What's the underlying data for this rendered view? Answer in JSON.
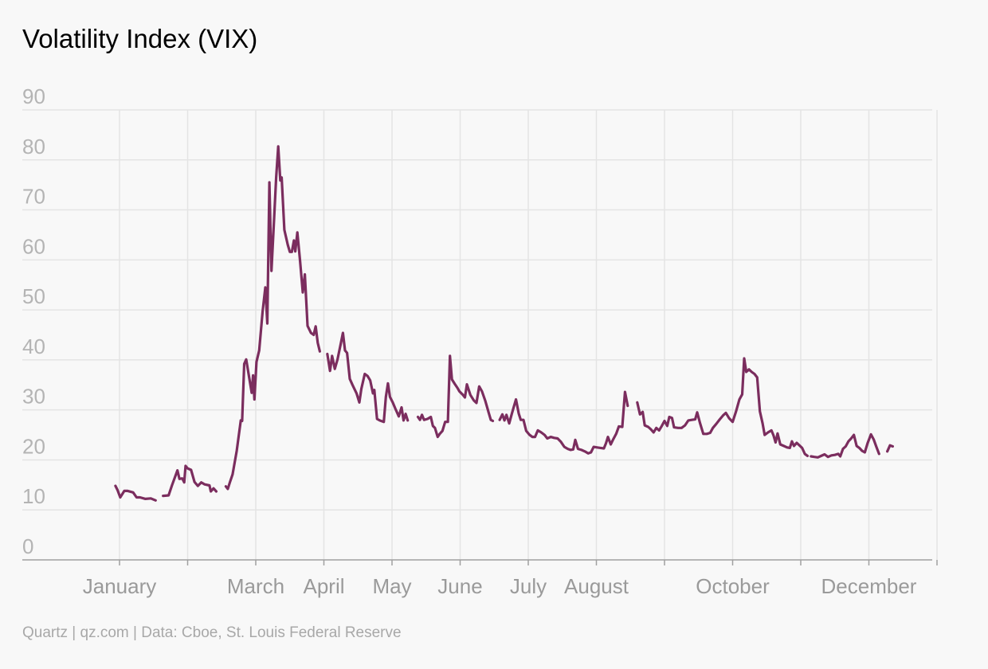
{
  "title": "Volatility Index (VIX)",
  "source": "Quartz | qz.com | Data: Cboe, St. Louis Federal Reserve",
  "colors": {
    "line": "#7b2d5e",
    "grid": "#e4e4e4",
    "tick_text": "#b4b4b4",
    "title": "#000000",
    "background": "#f8f8f8"
  },
  "chart_data": {
    "type": "line",
    "title": "Volatility Index (VIX)",
    "xlabel": "",
    "ylabel": "",
    "ylim": [
      0,
      90
    ],
    "yticks": [
      0,
      10,
      20,
      30,
      40,
      50,
      60,
      70,
      80,
      90
    ],
    "xlim": [
      -0.3,
      11.8
    ],
    "month_ticks": [
      0,
      1,
      2,
      3,
      4,
      5,
      6,
      7,
      8,
      9,
      10,
      11,
      12
    ],
    "xtick_labels": [
      {
        "label": "January",
        "x": 0
      },
      {
        "label": "March",
        "x": 2
      },
      {
        "label": "April",
        "x": 3
      },
      {
        "label": "May",
        "x": 4
      },
      {
        "label": "June",
        "x": 5
      },
      {
        "label": "July",
        "x": 6
      },
      {
        "label": "August",
        "x": 7
      },
      {
        "label": "October",
        "x": 9
      },
      {
        "label": "December",
        "x": 11
      }
    ],
    "grid": true,
    "legend": "none",
    "series": [
      {
        "segments": [
          [
            [
              -0.06,
              14.8
            ],
            [
              -0.03,
              14.0
            ],
            [
              0.01,
              12.5
            ],
            [
              0.07,
              13.8
            ],
            [
              0.12,
              13.8
            ],
            [
              0.2,
              13.5
            ],
            [
              0.25,
              12.5
            ],
            [
              0.3,
              12.5
            ],
            [
              0.38,
              12.2
            ],
            [
              0.46,
              12.3
            ],
            [
              0.53,
              11.9
            ]
          ],
          [
            [
              0.64,
              12.8
            ],
            [
              0.72,
              12.9
            ],
            [
              0.77,
              14.9
            ],
            [
              0.85,
              17.9
            ],
            [
              0.88,
              16.2
            ],
            [
              0.92,
              16.3
            ],
            [
              0.95,
              15.5
            ],
            [
              0.97,
              18.8
            ],
            [
              1.0,
              18.3
            ],
            [
              1.05,
              18.0
            ],
            [
              1.1,
              15.6
            ],
            [
              1.15,
              14.8
            ],
            [
              1.2,
              15.5
            ],
            [
              1.25,
              15.1
            ],
            [
              1.32,
              14.9
            ],
            [
              1.34,
              13.7
            ],
            [
              1.38,
              14.3
            ],
            [
              1.42,
              13.7
            ]
          ],
          [
            [
              1.56,
              14.7
            ],
            [
              1.59,
              14.2
            ],
            [
              1.62,
              15.5
            ],
            [
              1.66,
              17.1
            ],
            [
              1.72,
              21.8
            ],
            [
              1.78,
              27.9
            ],
            [
              1.8,
              27.8
            ],
            [
              1.83,
              39.2
            ],
            [
              1.86,
              40.1
            ],
            [
              1.9,
              36.8
            ],
            [
              1.94,
              33.4
            ],
            [
              1.96,
              36.9
            ],
            [
              1.98,
              32.1
            ],
            [
              2.01,
              39.6
            ],
            [
              2.05,
              41.9
            ],
            [
              2.1,
              49.7
            ],
            [
              2.14,
              54.5
            ],
            [
              2.17,
              47.3
            ],
            [
              2.2,
              75.5
            ],
            [
              2.23,
              57.8
            ],
            [
              2.27,
              68.5
            ],
            [
              2.3,
              76.5
            ],
            [
              2.33,
              82.7
            ],
            [
              2.36,
              75.9
            ],
            [
              2.38,
              76.5
            ],
            [
              2.42,
              66.0
            ],
            [
              2.47,
              63.0
            ],
            [
              2.5,
              61.6
            ],
            [
              2.53,
              61.6
            ],
            [
              2.56,
              63.9
            ],
            [
              2.58,
              61.7
            ],
            [
              2.61,
              65.5
            ],
            [
              2.65,
              59.8
            ],
            [
              2.69,
              53.5
            ],
            [
              2.72,
              57.1
            ],
            [
              2.76,
              46.8
            ],
            [
              2.81,
              45.4
            ],
            [
              2.85,
              45.0
            ],
            [
              2.88,
              46.7
            ],
            [
              2.91,
              43.4
            ],
            [
              2.94,
              41.7
            ]
          ],
          [
            [
              3.05,
              41.2
            ],
            [
              3.09,
              37.8
            ],
            [
              3.12,
              40.8
            ],
            [
              3.16,
              38.2
            ],
            [
              3.2,
              40.1
            ],
            [
              3.25,
              43.4
            ],
            [
              3.28,
              45.4
            ],
            [
              3.31,
              41.9
            ],
            [
              3.34,
              41.4
            ],
            [
              3.38,
              36.2
            ],
            [
              3.42,
              35.0
            ],
            [
              3.48,
              33.3
            ],
            [
              3.52,
              31.5
            ],
            [
              3.55,
              34.2
            ],
            [
              3.6,
              37.2
            ],
            [
              3.64,
              36.8
            ],
            [
              3.68,
              35.9
            ],
            [
              3.72,
              33.3
            ],
            [
              3.74,
              34.0
            ],
            [
              3.78,
              28.2
            ],
            [
              3.82,
              27.9
            ],
            [
              3.88,
              27.6
            ],
            [
              3.91,
              32.6
            ],
            [
              3.94,
              35.3
            ],
            [
              3.97,
              32.6
            ],
            [
              4.01,
              31.5
            ],
            [
              4.05,
              30.2
            ],
            [
              4.1,
              28.7
            ],
            [
              4.14,
              30.5
            ],
            [
              4.17,
              27.9
            ],
            [
              4.2,
              29.2
            ],
            [
              4.23,
              27.9
            ]
          ],
          [
            [
              4.38,
              28.6
            ],
            [
              4.41,
              28.0
            ],
            [
              4.44,
              29.0
            ],
            [
              4.47,
              28.0
            ],
            [
              4.52,
              28.2
            ],
            [
              4.57,
              28.6
            ],
            [
              4.6,
              26.8
            ],
            [
              4.63,
              26.4
            ],
            [
              4.67,
              24.6
            ],
            [
              4.7,
              25.2
            ],
            [
              4.74,
              25.8
            ],
            [
              4.78,
              27.6
            ],
            [
              4.82,
              27.6
            ],
            [
              4.85,
              40.8
            ],
            [
              4.88,
              36.1
            ],
            [
              4.92,
              35.2
            ],
            [
              4.96,
              34.4
            ],
            [
              4.99,
              33.7
            ],
            [
              5.04,
              33.0
            ],
            [
              5.07,
              32.5
            ],
            [
              5.1,
              35.1
            ],
            [
              5.15,
              33.0
            ],
            [
              5.2,
              31.9
            ],
            [
              5.24,
              31.4
            ],
            [
              5.28,
              34.7
            ],
            [
              5.32,
              33.7
            ],
            [
              5.37,
              31.8
            ],
            [
              5.42,
              29.4
            ],
            [
              5.45,
              28.0
            ],
            [
              5.48,
              27.8
            ]
          ],
          [
            [
              5.58,
              28.0
            ],
            [
              5.62,
              29.1
            ],
            [
              5.65,
              27.9
            ],
            [
              5.68,
              29.0
            ],
            [
              5.72,
              27.3
            ],
            [
              5.76,
              29.3
            ],
            [
              5.79,
              30.7
            ],
            [
              5.82,
              32.1
            ],
            [
              5.86,
              29.3
            ],
            [
              5.89,
              28.0
            ],
            [
              5.93,
              28.0
            ],
            [
              5.97,
              25.8
            ],
            [
              6.02,
              25.0
            ],
            [
              6.06,
              24.6
            ],
            [
              6.1,
              24.6
            ],
            [
              6.14,
              25.9
            ],
            [
              6.19,
              25.5
            ],
            [
              6.24,
              25.0
            ],
            [
              6.28,
              24.3
            ],
            [
              6.33,
              24.6
            ],
            [
              6.38,
              24.4
            ],
            [
              6.43,
              24.3
            ],
            [
              6.48,
              23.6
            ],
            [
              6.53,
              22.6
            ],
            [
              6.58,
              22.2
            ],
            [
              6.62,
              22.0
            ],
            [
              6.66,
              22.1
            ],
            [
              6.69,
              24.0
            ],
            [
              6.73,
              22.2
            ],
            [
              6.78,
              22.0
            ],
            [
              6.83,
              21.7
            ],
            [
              6.88,
              21.3
            ],
            [
              6.92,
              21.5
            ],
            [
              6.96,
              22.6
            ],
            [
              7.01,
              22.5
            ],
            [
              7.06,
              22.4
            ],
            [
              7.11,
              22.3
            ],
            [
              7.14,
              23.3
            ],
            [
              7.17,
              24.6
            ],
            [
              7.21,
              23.1
            ],
            [
              7.25,
              24.2
            ],
            [
              7.29,
              25.2
            ],
            [
              7.33,
              26.7
            ],
            [
              7.38,
              26.6
            ],
            [
              7.42,
              33.6
            ],
            [
              7.46,
              30.8
            ]
          ],
          [
            [
              7.6,
              31.5
            ],
            [
              7.64,
              29.1
            ],
            [
              7.68,
              29.6
            ],
            [
              7.71,
              26.9
            ],
            [
              7.76,
              26.6
            ],
            [
              7.8,
              26.1
            ],
            [
              7.84,
              25.5
            ],
            [
              7.88,
              26.4
            ],
            [
              7.92,
              25.9
            ],
            [
              7.96,
              26.8
            ],
            [
              8.0,
              27.8
            ],
            [
              8.04,
              26.8
            ],
            [
              8.07,
              28.6
            ],
            [
              8.11,
              28.4
            ],
            [
              8.14,
              26.5
            ],
            [
              8.2,
              26.4
            ],
            [
              8.25,
              26.4
            ],
            [
              8.3,
              26.9
            ],
            [
              8.35,
              27.9
            ],
            [
              8.4,
              28.0
            ],
            [
              8.45,
              28.1
            ],
            [
              8.48,
              29.5
            ],
            [
              8.52,
              27.4
            ],
            [
              8.57,
              25.2
            ],
            [
              8.62,
              25.2
            ],
            [
              8.67,
              25.4
            ],
            [
              8.71,
              26.4
            ],
            [
              8.76,
              27.2
            ],
            [
              8.81,
              28.1
            ],
            [
              8.86,
              28.9
            ],
            [
              8.9,
              29.4
            ],
            [
              8.95,
              28.3
            ],
            [
              9.0,
              27.6
            ],
            [
              9.05,
              29.7
            ],
            [
              9.1,
              32.1
            ],
            [
              9.14,
              33.1
            ],
            [
              9.17,
              40.3
            ],
            [
              9.2,
              37.6
            ],
            [
              9.24,
              38.1
            ],
            [
              9.28,
              37.6
            ],
            [
              9.32,
              37.2
            ],
            [
              9.36,
              36.5
            ],
            [
              9.4,
              29.7
            ],
            [
              9.44,
              27.3
            ],
            [
              9.47,
              25.0
            ],
            [
              9.52,
              25.5
            ],
            [
              9.57,
              25.9
            ],
            [
              9.6,
              24.9
            ],
            [
              9.63,
              23.5
            ],
            [
              9.66,
              25.3
            ],
            [
              9.7,
              23.1
            ],
            [
              9.75,
              22.8
            ],
            [
              9.8,
              22.5
            ],
            [
              9.84,
              22.4
            ],
            [
              9.87,
              23.7
            ],
            [
              9.9,
              22.8
            ],
            [
              9.94,
              23.4
            ],
            [
              9.98,
              22.9
            ],
            [
              10.02,
              22.4
            ],
            [
              10.06,
              21.2
            ],
            [
              10.1,
              20.8
            ]
          ],
          [
            [
              10.15,
              20.7
            ],
            [
              10.2,
              20.6
            ],
            [
              10.25,
              20.5
            ],
            [
              10.3,
              20.8
            ],
            [
              10.35,
              21.1
            ],
            [
              10.4,
              20.6
            ],
            [
              10.45,
              20.9
            ],
            [
              10.5,
              21.0
            ],
            [
              10.55,
              21.2
            ],
            [
              10.58,
              20.7
            ],
            [
              10.62,
              22.2
            ],
            [
              10.66,
              22.7
            ],
            [
              10.7,
              23.7
            ],
            [
              10.74,
              24.3
            ],
            [
              10.78,
              25.0
            ],
            [
              10.82,
              22.8
            ],
            [
              10.86,
              22.4
            ],
            [
              10.9,
              21.8
            ],
            [
              10.94,
              21.5
            ],
            [
              10.98,
              23.3
            ],
            [
              11.03,
              25.1
            ],
            [
              11.07,
              24.1
            ],
            [
              11.11,
              22.6
            ],
            [
              11.15,
              21.2
            ]
          ],
          [
            [
              11.27,
              21.7
            ],
            [
              11.31,
              22.9
            ],
            [
              11.35,
              22.7
            ]
          ]
        ]
      }
    ]
  }
}
